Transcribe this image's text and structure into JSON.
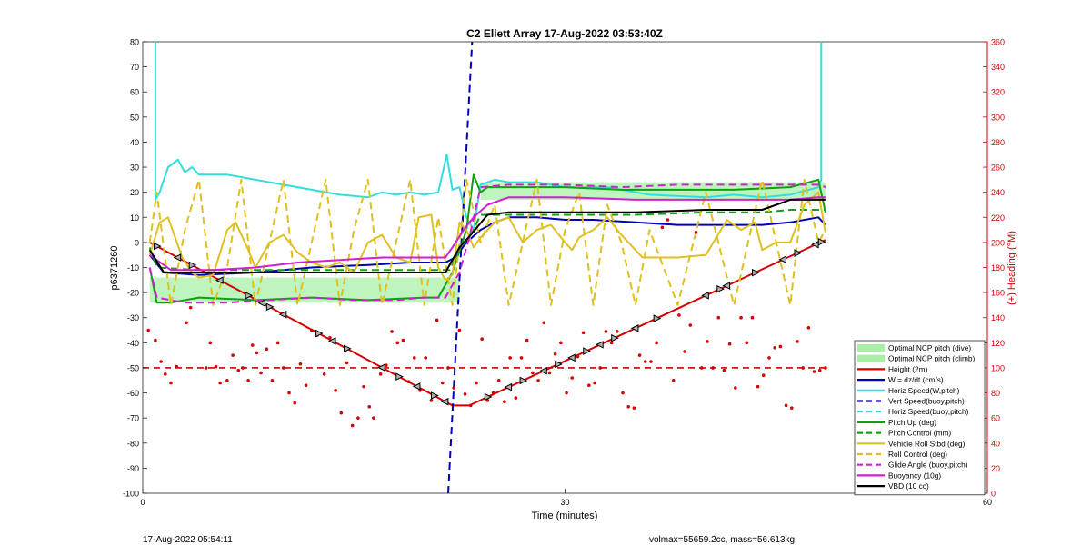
{
  "chart_data": {
    "type": "line",
    "title": "C2 Ellett Array 17-Aug-2022 03:53:40Z",
    "xlabel": "Time (minutes)",
    "ylabel": "p6371260",
    "y2label": "(+) Heading (°M)",
    "xlim": [
      0,
      60
    ],
    "ylim": [
      -100,
      80
    ],
    "y2lim": [
      0,
      360
    ],
    "xticks": [
      0,
      30,
      60
    ],
    "yticks": [
      -100,
      -90,
      -80,
      -70,
      -60,
      -50,
      -40,
      -30,
      -20,
      -10,
      0,
      10,
      20,
      30,
      40,
      50,
      60,
      70,
      80
    ],
    "y2ticks": [
      0,
      20,
      40,
      60,
      80,
      100,
      120,
      140,
      160,
      180,
      200,
      220,
      240,
      260,
      280,
      300,
      320,
      340,
      360
    ],
    "legend_position": "bottom-right",
    "colors": {
      "axis_left": "#000000",
      "axis_right": "#d40000",
      "optimal_ncp": "#a8f0a8",
      "height": "#d40000",
      "w": "#0000b4",
      "horiz_speed": "#33dddd",
      "vert_speed": "#0000b4",
      "pitch": "#10a010",
      "roll": "#e0c020",
      "glide": "#d020d0",
      "buoyancy": "#d020d0",
      "vbd": "#000000"
    },
    "legend": [
      {
        "label": "Optimal NCP pitch (dive)",
        "style": "patch",
        "color": "#a8f0a8"
      },
      {
        "label": "Optimal NCP pitch (climb)",
        "style": "patch",
        "color": "#a8f0a8"
      },
      {
        "label": "Height (2m)",
        "style": "solid",
        "color": "#d40000"
      },
      {
        "label": "W = dz/dt (cm/s)",
        "style": "solid",
        "color": "#0000b4"
      },
      {
        "label": "Horiz Speed(W,pitch)",
        "style": "solid",
        "color": "#33dddd"
      },
      {
        "label": "Vert Speed(buoy,pitch)",
        "style": "dashed",
        "color": "#0000b4"
      },
      {
        "label": "Horiz Speed(buoy,pitch)",
        "style": "dashed",
        "color": "#33dddd"
      },
      {
        "label": "Pitch Up (deg)",
        "style": "solid",
        "color": "#10a010"
      },
      {
        "label": "Pitch Control (mm)",
        "style": "dashed",
        "color": "#10a010"
      },
      {
        "label": "Vehicle Roll Stbd (deg)",
        "style": "solid",
        "color": "#e0c020"
      },
      {
        "label": "Roll Control (deg)",
        "style": "dashed",
        "color": "#e0c020"
      },
      {
        "label": "Glide Angle (buoy,pitch)",
        "style": "dashed",
        "color": "#d020d0"
      },
      {
        "label": "Buoyancy (10g)",
        "style": "solid",
        "color": "#d020d0"
      },
      {
        "label": "VBD (10 cc)",
        "style": "solid",
        "color": "#000000"
      }
    ],
    "bands": [
      {
        "name": "Optimal NCP pitch (dive)",
        "x": [
          0.5,
          22.5
        ],
        "y": [
          -24,
          -14
        ]
      },
      {
        "name": "Optimal NCP pitch (climb)",
        "x": [
          24,
          48.5
        ],
        "y": [
          17,
          24
        ]
      }
    ],
    "series": [
      {
        "name": "Height (2m)",
        "style": "solid",
        "color": "#d40000",
        "x": [
          0.5,
          22,
          23.2,
          48.5
        ],
        "y": [
          0,
          -65,
          -65,
          1
        ]
      },
      {
        "name": "W = dz/dt (cm/s)",
        "style": "solid",
        "color": "#0000b4",
        "x": [
          0.5,
          1.5,
          4,
          8,
          12,
          16,
          19,
          21.5,
          22.2,
          23,
          24,
          25,
          26,
          28,
          30,
          32,
          35,
          38,
          41,
          44,
          46,
          48,
          48.5
        ],
        "y": [
          -5,
          -12,
          -13,
          -12,
          -10,
          -9,
          -8,
          -8,
          -6,
          0,
          5,
          8,
          10,
          10,
          9,
          9,
          8,
          7,
          7,
          7,
          8,
          10,
          7
        ]
      },
      {
        "name": "Horiz Speed(W,pitch)",
        "style": "solid",
        "color": "#33dddd",
        "x": [
          0.9,
          0.9,
          1.2,
          1.8,
          2.5,
          3,
          3.5,
          4,
          6,
          8,
          10,
          12,
          14,
          16,
          17,
          18,
          19,
          20,
          21,
          21.6,
          22,
          22.5,
          23,
          23.5,
          24,
          25,
          26,
          28,
          30,
          33,
          36,
          40,
          42,
          44,
          46,
          48,
          48.2,
          48.2
        ],
        "y": [
          80,
          17,
          20,
          30,
          33,
          28,
          30,
          27,
          27,
          25,
          23,
          21,
          19,
          18,
          20,
          19,
          20,
          19,
          20,
          35,
          21,
          22,
          10,
          5,
          23,
          25,
          24,
          24,
          22,
          22,
          19,
          18,
          19,
          18,
          19,
          22,
          25,
          80
        ]
      },
      {
        "name": "Vert Speed(buoy,pitch)",
        "style": "dashed",
        "color": "#0000b4",
        "x": [
          21.7,
          23.4
        ],
        "y": [
          -100,
          80
        ]
      },
      {
        "name": "Pitch Up (deg)",
        "style": "solid",
        "color": "#10a010",
        "x": [
          0.5,
          1,
          2,
          4,
          8,
          12,
          16,
          20,
          21,
          22,
          23,
          23.5,
          24,
          24.5,
          26,
          30,
          34,
          38,
          42,
          46,
          48,
          48.5
        ],
        "y": [
          -10,
          -24,
          -24,
          -22,
          -23,
          -22,
          -23,
          -22,
          -22,
          -12,
          5,
          27,
          20,
          22,
          22,
          22,
          21,
          21,
          21,
          22,
          25,
          12
        ]
      },
      {
        "name": "Pitch Control (mm)",
        "style": "dashed",
        "color": "#10a010",
        "x": [
          0.5,
          1,
          4,
          8,
          12,
          16,
          20,
          21.8,
          22.5,
          23.5,
          24,
          27,
          30,
          35,
          40,
          44,
          46,
          48.5
        ],
        "y": [
          -2,
          -10,
          -11,
          -11,
          -11,
          -11,
          -11,
          -11,
          -3,
          5,
          11,
          11,
          11,
          11,
          12,
          12,
          13,
          13
        ]
      },
      {
        "name": "Vehicle Roll Stbd (deg)",
        "style": "solid",
        "color": "#e0c020",
        "x": [
          0.5,
          1.2,
          1.8,
          2.8,
          3.5,
          4,
          5,
          6,
          6.6,
          7.5,
          8,
          9,
          10,
          11,
          12,
          13,
          14,
          15,
          16,
          17,
          18,
          19,
          19.6,
          20.5,
          21,
          21.5,
          22,
          22.5,
          23,
          23.5,
          24,
          25,
          26,
          27,
          28,
          29,
          30,
          30.5,
          31,
          32,
          33,
          34,
          35,
          35.5,
          36,
          38,
          40,
          41.5,
          42.5,
          43.5,
          44,
          45,
          46,
          47,
          48,
          48.5
        ],
        "y": [
          -5,
          8,
          10,
          -6,
          -12,
          -14,
          -13,
          5,
          8,
          -3,
          -10,
          0,
          3,
          -4,
          -8,
          -10,
          -8,
          -12,
          0,
          3,
          -6,
          -8,
          10,
          11,
          -10,
          -15,
          -13,
          8,
          5,
          -2,
          2,
          8,
          10,
          0,
          5,
          7,
          0,
          -3,
          2,
          5,
          10,
          3,
          -3,
          -6,
          -6,
          -6,
          -5,
          9,
          5,
          8,
          -3,
          0,
          0,
          15,
          20,
          4
        ]
      },
      {
        "name": "Roll Control (deg)",
        "style": "dashed",
        "color": "#e0c020",
        "x": [
          0.5,
          1,
          2,
          3,
          4,
          5,
          6,
          7,
          8,
          9,
          10,
          11,
          12,
          13,
          14,
          15,
          16,
          17,
          18,
          19,
          20,
          21,
          22,
          23,
          24,
          25,
          26,
          27,
          28,
          29,
          30,
          31,
          32,
          33,
          34,
          35,
          36,
          38,
          40,
          42,
          44,
          46,
          47,
          48,
          48.5
        ],
        "y": [
          0,
          20,
          -25,
          5,
          25,
          -25,
          -10,
          25,
          -25,
          0,
          25,
          -25,
          0,
          25,
          -25,
          5,
          25,
          -25,
          0,
          25,
          -25,
          10,
          -25,
          25,
          0,
          15,
          -25,
          0,
          25,
          -25,
          5,
          20,
          -25,
          15,
          0,
          -25,
          5,
          -25,
          20,
          -25,
          25,
          -25,
          25,
          0,
          5
        ]
      },
      {
        "name": "Glide Angle (buoy,pitch)",
        "style": "dashed",
        "color": "#d020d0",
        "x": [
          0.5,
          1,
          3,
          6,
          9,
          12,
          15,
          18,
          20,
          21.5,
          22.5,
          23.2,
          24,
          26,
          28,
          30,
          34,
          38,
          42,
          46,
          48,
          48.5
        ],
        "y": [
          -10,
          -22,
          -24,
          -24,
          -23,
          -22,
          -23,
          -23,
          -22,
          -22,
          -12,
          2,
          22,
          23,
          23,
          23,
          22,
          23,
          23,
          23,
          23,
          22
        ]
      },
      {
        "name": "Buoyancy (10g)",
        "style": "solid",
        "color": "#d020d0",
        "x": [
          0.5,
          2,
          5,
          8,
          11,
          14,
          17,
          20,
          21.5,
          22,
          22.8,
          23.5,
          24.5,
          26,
          28,
          30,
          35,
          40,
          44,
          46,
          48,
          48.5
        ],
        "y": [
          -5,
          -11,
          -11,
          -10,
          -8,
          -7,
          -6,
          -6,
          -6,
          -2,
          5,
          10,
          15,
          18,
          18,
          18,
          17,
          17,
          17,
          17,
          18,
          18
        ]
      },
      {
        "name": "VBD (10 cc)",
        "style": "solid",
        "color": "#000000",
        "x": [
          0.5,
          1.5,
          4,
          8,
          12,
          16,
          20,
          21.5,
          22.5,
          23.3,
          24.5,
          26,
          30,
          34,
          35,
          40,
          44,
          45,
          46,
          48,
          48.5
        ],
        "y": [
          -3,
          -12,
          -12,
          -12,
          -12,
          -12,
          -12,
          -12,
          -2,
          3,
          11,
          12,
          12,
          12,
          12,
          13,
          13,
          15,
          17,
          17,
          17
        ]
      }
    ],
    "reference_lines": [
      {
        "axis": "y2",
        "value": 100,
        "style": "dashed",
        "color": "#d40000"
      }
    ],
    "heading_points": {
      "axis": "y2",
      "color": "#d40000",
      "x": [
        0.4,
        0.9,
        1.3,
        1.6,
        2.0,
        2.4,
        3.1,
        3.4,
        4.5,
        4.8,
        5.2,
        5.5,
        6.0,
        6.4,
        6.8,
        7.1,
        7.5,
        7.8,
        8.1,
        8.4,
        8.8,
        9.2,
        9.6,
        10.0,
        10.4,
        10.8,
        11.2,
        11.6,
        12.0,
        12.4,
        12.9,
        13.3,
        13.7,
        14.1,
        14.5,
        14.9,
        15.3,
        15.7,
        16.1,
        16.4,
        16.9,
        17.3,
        17.7,
        18.1,
        18.5,
        18.9,
        19.3,
        19.7,
        20.1,
        20.5,
        20.9,
        21.3,
        21.7,
        22.1,
        22.5,
        22.9,
        23.3,
        23.7,
        24.1,
        24.5,
        24.9,
        25.3,
        25.7,
        26.1,
        26.5,
        26.9,
        27.3,
        27.7,
        28.1,
        28.5,
        28.9,
        29.3,
        29.7,
        30.1,
        30.5,
        30.9,
        31.3,
        31.7,
        32.1,
        32.5,
        32.9,
        33.3,
        33.7,
        34.1,
        34.5,
        34.9,
        35.3,
        35.7,
        36.1,
        36.5,
        36.9,
        37.3,
        37.7,
        38.1,
        38.5,
        38.9,
        39.3,
        39.7,
        40.1,
        40.5,
        40.9,
        41.3,
        41.7,
        42.1,
        42.5,
        42.9,
        43.3,
        43.7,
        44.1,
        44.5,
        44.9,
        45.3,
        45.7,
        46.1,
        46.5,
        46.9,
        47.3,
        47.7,
        48.1,
        48.5
      ],
      "y": [
        130,
        122,
        105,
        95,
        88,
        101,
        136,
        148,
        100,
        120,
        101,
        88,
        90,
        110,
        98,
        100,
        90,
        118,
        112,
        96,
        115,
        90,
        120,
        100,
        80,
        72,
        103,
        86,
        130,
        126,
        95,
        124,
        82,
        64,
        104,
        54,
        60,
        85,
        69,
        60,
        95,
        102,
        129,
        120,
        122,
        89,
        108,
        82,
        108,
        74,
        138,
        88,
        100,
        84,
        130,
        79,
        70,
        88,
        123,
        74,
        80,
        90,
        73,
        108,
        76,
        108,
        122,
        96,
        90,
        136,
        96,
        111,
        120,
        80,
        92,
        109,
        128,
        86,
        88,
        100,
        129,
        120,
        129,
        80,
        69,
        68,
        110,
        105,
        105,
        120,
        212,
        218,
        90,
        142,
        113,
        134,
        208,
        100,
        121,
        100,
        140,
        98,
        119,
        84,
        140,
        120,
        140,
        85,
        94,
        108,
        116,
        117,
        70,
        68,
        121,
        100,
        132,
        97,
        98,
        100
      ]
    },
    "direction_markers": {
      "x": [
        1.0,
        2.5,
        3.5,
        5.5,
        7.5,
        8.5,
        9.0,
        10.0,
        12.5,
        13.5,
        14.5,
        17.0,
        18.2,
        19.5,
        20.7,
        21.5,
        24.5,
        26.0,
        27.0,
        28.5,
        29.5,
        30.5,
        31.5,
        32.5,
        33.5,
        35.0,
        36.5,
        40.0,
        41.0,
        41.5,
        43.5,
        45.5,
        46.5,
        47.8,
        48.2
      ]
    }
  },
  "footer": {
    "timestamp": "17-Aug-2022 05:54:11",
    "info": "volmax=55659.2cc, mass=56.613kg"
  }
}
